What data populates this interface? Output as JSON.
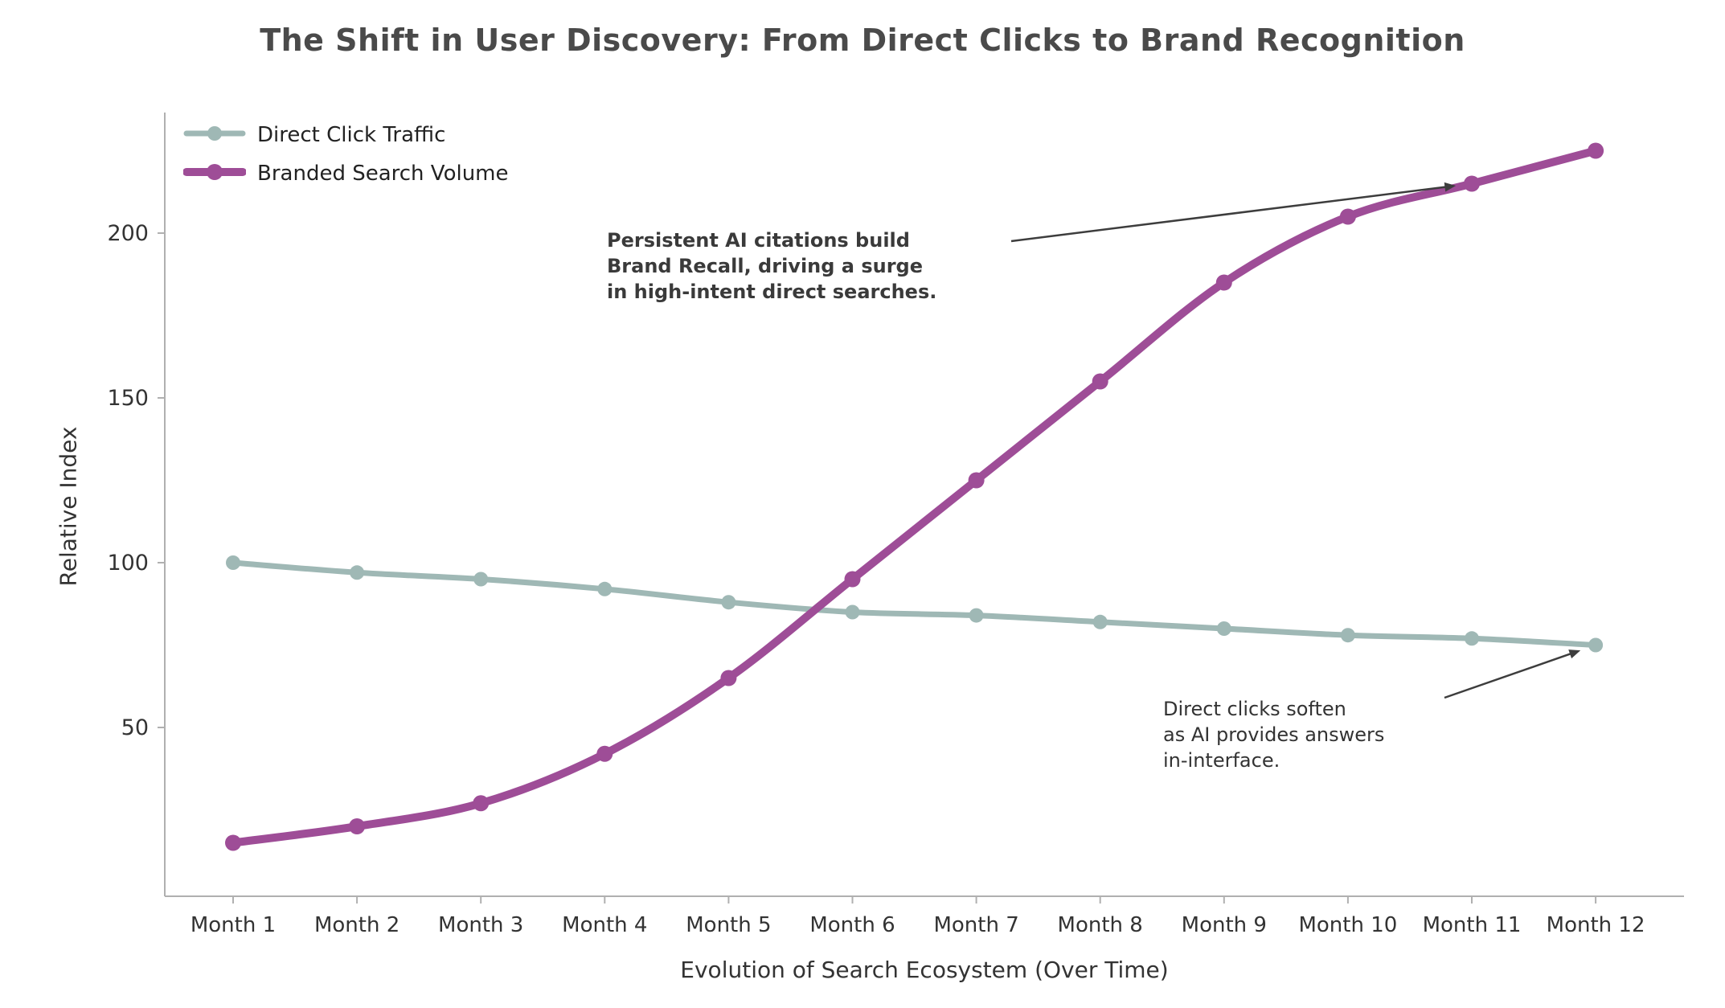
{
  "chart_data": {
    "type": "line",
    "title": "The Shift in User Discovery: From Direct Clicks to Brand Recognition",
    "xlabel": "Evolution of Search Ecosystem (Over Time)",
    "ylabel": "Relative Index",
    "categories": [
      "Month 1",
      "Month 2",
      "Month 3",
      "Month 4",
      "Month 5",
      "Month 6",
      "Month 7",
      "Month 8",
      "Month 9",
      "Month 10",
      "Month 11",
      "Month 12"
    ],
    "yticks": [
      50,
      100,
      150,
      200
    ],
    "ylim": [
      0,
      235
    ],
    "grid": false,
    "legend_position": "upper left",
    "axis_color": "#b0b0b0",
    "text_color": "#333333",
    "title_color": "#4a4a4a",
    "series": [
      {
        "id": "direct-click-traffic",
        "name": "Direct Click Traffic",
        "color": "#9fb8b5",
        "line_width": 7,
        "marker_radius": 9,
        "values": [
          100,
          97,
          95,
          92,
          88,
          85,
          84,
          82,
          80,
          78,
          77,
          75
        ]
      },
      {
        "id": "branded-search-volume",
        "name": "Branded Search Volume",
        "color": "#9e4d97",
        "line_width": 10,
        "marker_radius": 10,
        "values": [
          15,
          20,
          27,
          42,
          65,
          95,
          125,
          155,
          185,
          205,
          215,
          225
        ]
      }
    ],
    "annotations": [
      {
        "id": "brand-recall",
        "bold": true,
        "lines": [
          "Persistent AI citations build",
          "Brand Recall, driving a surge",
          "in high-intent direct searches."
        ],
        "target_series": 1,
        "target_point": 10
      },
      {
        "id": "direct-clicks",
        "bold": false,
        "lines": [
          "Direct clicks soften",
          "as AI provides answers",
          "in-interface."
        ],
        "target_series": 0,
        "target_point": 11
      }
    ]
  }
}
